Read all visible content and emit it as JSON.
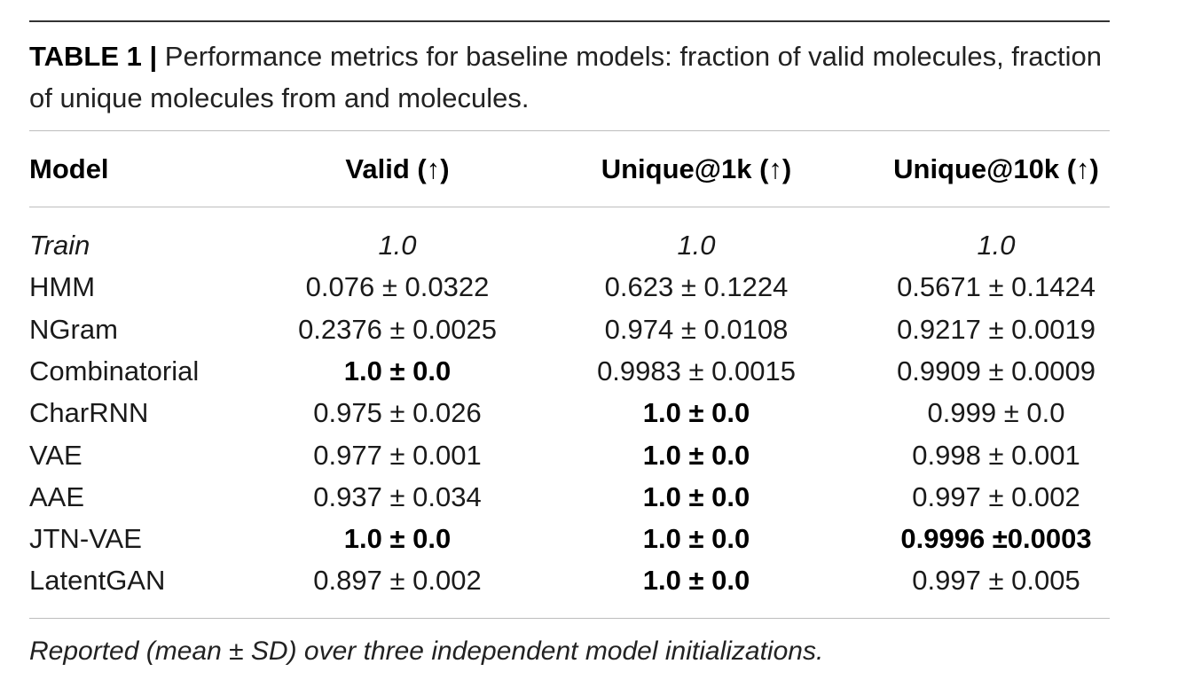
{
  "caption": {
    "label": "TABLE 1 |",
    "text": " Performance metrics for baseline models: fraction of valid molecules, fraction of unique molecules from and molecules."
  },
  "table": {
    "headers": [
      "Model",
      "Valid (↑)",
      "Unique@1k (↑)",
      "Unique@10k (↑)"
    ],
    "rows": [
      {
        "model": "Train",
        "valid": "1.0",
        "u1k": "1.0",
        "u10k": "1.0",
        "italic": true,
        "bold": [
          false,
          false,
          false
        ]
      },
      {
        "model": "HMM",
        "valid": "0.076 ± 0.0322",
        "u1k": "0.623 ± 0.1224",
        "u10k": "0.5671 ± 0.1424",
        "italic": false,
        "bold": [
          false,
          false,
          false
        ]
      },
      {
        "model": "NGram",
        "valid": "0.2376 ± 0.0025",
        "u1k": "0.974 ± 0.0108",
        "u10k": "0.9217 ± 0.0019",
        "italic": false,
        "bold": [
          false,
          false,
          false
        ]
      },
      {
        "model": "Combinatorial",
        "valid": "1.0 ± 0.0",
        "u1k": "0.9983 ± 0.0015",
        "u10k": "0.9909 ± 0.0009",
        "italic": false,
        "bold": [
          true,
          false,
          false
        ]
      },
      {
        "model": "CharRNN",
        "valid": "0.975 ± 0.026",
        "u1k": "1.0 ± 0.0",
        "u10k": "0.999 ± 0.0",
        "italic": false,
        "bold": [
          false,
          true,
          false
        ]
      },
      {
        "model": "VAE",
        "valid": "0.977 ± 0.001",
        "u1k": "1.0 ± 0.0",
        "u10k": "0.998 ± 0.001",
        "italic": false,
        "bold": [
          false,
          true,
          false
        ]
      },
      {
        "model": "AAE",
        "valid": "0.937 ± 0.034",
        "u1k": "1.0 ± 0.0",
        "u10k": "0.997 ± 0.002",
        "italic": false,
        "bold": [
          false,
          true,
          false
        ]
      },
      {
        "model": "JTN-VAE",
        "valid": "1.0 ± 0.0",
        "u1k": "1.0 ± 0.0",
        "u10k": "0.9996 ±0.0003",
        "italic": false,
        "bold": [
          true,
          true,
          true
        ]
      },
      {
        "model": "LatentGAN",
        "valid": "0.897 ± 0.002",
        "u1k": "1.0 ± 0.0",
        "u10k": "0.997 ± 0.005",
        "italic": false,
        "bold": [
          false,
          true,
          false
        ]
      }
    ]
  },
  "footnote": "Reported (mean ± SD) over three independent model initializations."
}
